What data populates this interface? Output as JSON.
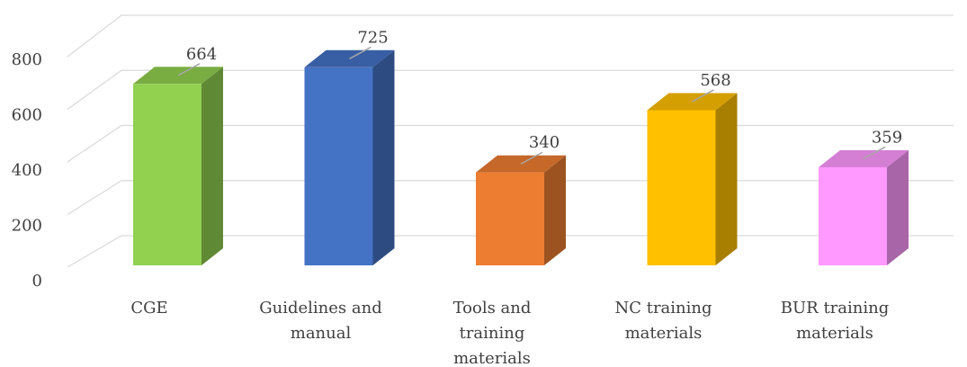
{
  "chart_data": {
    "type": "bar3d",
    "categories": [
      "CGE",
      "Guidelines and manual",
      "Tools and training materials",
      "NC training materials",
      "BUR training materials"
    ],
    "values": [
      664,
      725,
      340,
      568,
      359
    ],
    "colors": [
      "#92d050",
      "#4472c4",
      "#ed7d31",
      "#ffc000",
      "#ff99ff"
    ],
    "ylim": [
      0,
      800
    ],
    "yticks": [
      0,
      200,
      400,
      600,
      800
    ],
    "grid": true
  }
}
